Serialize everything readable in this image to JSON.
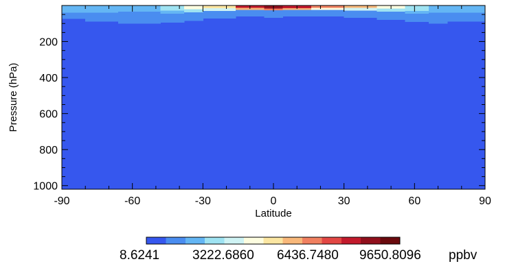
{
  "chart_data": {
    "type": "heatmap",
    "title": "",
    "xlabel": "Latitude",
    "ylabel": "Pressure (hPa)",
    "xlim": [
      -90,
      90
    ],
    "ylim": [
      1020,
      0
    ],
    "x_ticks": [
      -90,
      -60,
      -30,
      0,
      30,
      60,
      90
    ],
    "x_tick_labels": [
      "-90",
      "-60",
      "-30",
      "0",
      "30",
      "60",
      "90"
    ],
    "y_ticks": [
      200,
      400,
      600,
      800,
      1000
    ],
    "y_tick_labels": [
      "200",
      "400",
      "600",
      "800",
      "1000"
    ],
    "y_reversed": true,
    "colorbar": {
      "unit": "ppbv",
      "colors": [
        "#3657ee",
        "#4a8df0",
        "#64b6f4",
        "#9fe3f2",
        "#cff3f4",
        "#fdfde0",
        "#fbe6a2",
        "#f8b87a",
        "#f08060",
        "#e24744",
        "#c21a2c",
        "#900f1c",
        "#6a0a0e"
      ],
      "tick_values": [
        "8.6241",
        "3222.6860",
        "6436.7480",
        "9650.8096"
      ]
    },
    "columns": [
      {
        "lat_range": [
          -90,
          -80
        ],
        "levels": [
          {
            "p_top": 0,
            "p_bot": 40,
            "class": 2
          },
          {
            "p_top": 40,
            "p_bot": 75,
            "class": 1
          }
        ]
      },
      {
        "lat_range": [
          -80,
          -66
        ],
        "levels": [
          {
            "p_top": 0,
            "p_bot": 40,
            "class": 2
          },
          {
            "p_top": 40,
            "p_bot": 90,
            "class": 1
          }
        ]
      },
      {
        "lat_range": [
          -66,
          -48
        ],
        "levels": [
          {
            "p_top": 0,
            "p_bot": 35,
            "class": 2
          },
          {
            "p_top": 35,
            "p_bot": 100,
            "class": 1
          }
        ]
      },
      {
        "lat_range": [
          -48,
          -38
        ],
        "levels": [
          {
            "p_top": 0,
            "p_bot": 28,
            "class": 3
          },
          {
            "p_top": 28,
            "p_bot": 45,
            "class": 2
          },
          {
            "p_top": 45,
            "p_bot": 95,
            "class": 1
          }
        ]
      },
      {
        "lat_range": [
          -38,
          -30
        ],
        "levels": [
          {
            "p_top": 0,
            "p_bot": 20,
            "class": 5
          },
          {
            "p_top": 20,
            "p_bot": 38,
            "class": 3
          },
          {
            "p_top": 38,
            "p_bot": 85,
            "class": 1
          }
        ]
      },
      {
        "lat_range": [
          -30,
          -16
        ],
        "levels": [
          {
            "p_top": 0,
            "p_bot": 15,
            "class": 6
          },
          {
            "p_top": 15,
            "p_bot": 30,
            "class": 4
          },
          {
            "p_top": 30,
            "p_bot": 72,
            "class": 1
          }
        ]
      },
      {
        "lat_range": [
          -16,
          -4
        ],
        "levels": [
          {
            "p_top": 0,
            "p_bot": 14,
            "class": 10
          },
          {
            "p_top": 14,
            "p_bot": 24,
            "class": 7
          },
          {
            "p_top": 24,
            "p_bot": 60,
            "class": 1
          }
        ]
      },
      {
        "lat_range": [
          -4,
          4
        ],
        "levels": [
          {
            "p_top": 0,
            "p_bot": 18,
            "class": 11
          },
          {
            "p_top": 18,
            "p_bot": 26,
            "class": 8
          },
          {
            "p_top": 26,
            "p_bot": 68,
            "class": 1
          }
        ]
      },
      {
        "lat_range": [
          4,
          16
        ],
        "levels": [
          {
            "p_top": 0,
            "p_bot": 15,
            "class": 10
          },
          {
            "p_top": 15,
            "p_bot": 25,
            "class": 7
          },
          {
            "p_top": 25,
            "p_bot": 60,
            "class": 1
          }
        ]
      },
      {
        "lat_range": [
          16,
          30
        ],
        "levels": [
          {
            "p_top": 0,
            "p_bot": 14,
            "class": 8
          },
          {
            "p_top": 14,
            "p_bot": 24,
            "class": 5
          },
          {
            "p_top": 24,
            "p_bot": 60,
            "class": 1
          }
        ]
      },
      {
        "lat_range": [
          30,
          44
        ],
        "levels": [
          {
            "p_top": 0,
            "p_bot": 14,
            "class": 7
          },
          {
            "p_top": 14,
            "p_bot": 28,
            "class": 4
          },
          {
            "p_top": 28,
            "p_bot": 68,
            "class": 1
          }
        ]
      },
      {
        "lat_range": [
          44,
          56
        ],
        "levels": [
          {
            "p_top": 0,
            "p_bot": 18,
            "class": 5
          },
          {
            "p_top": 18,
            "p_bot": 35,
            "class": 3
          },
          {
            "p_top": 35,
            "p_bot": 80,
            "class": 1
          }
        ]
      },
      {
        "lat_range": [
          56,
          66
        ],
        "levels": [
          {
            "p_top": 0,
            "p_bot": 30,
            "class": 3
          },
          {
            "p_top": 30,
            "p_bot": 45,
            "class": 2
          },
          {
            "p_top": 45,
            "p_bot": 92,
            "class": 1
          }
        ]
      },
      {
        "lat_range": [
          66,
          74
        ],
        "levels": [
          {
            "p_top": 0,
            "p_bot": 40,
            "class": 2
          },
          {
            "p_top": 40,
            "p_bot": 100,
            "class": 1
          }
        ]
      },
      {
        "lat_range": [
          74,
          90
        ],
        "levels": [
          {
            "p_top": 0,
            "p_bot": 40,
            "class": 2
          },
          {
            "p_top": 40,
            "p_bot": 90,
            "class": 1
          }
        ]
      }
    ],
    "background_class": 0
  }
}
